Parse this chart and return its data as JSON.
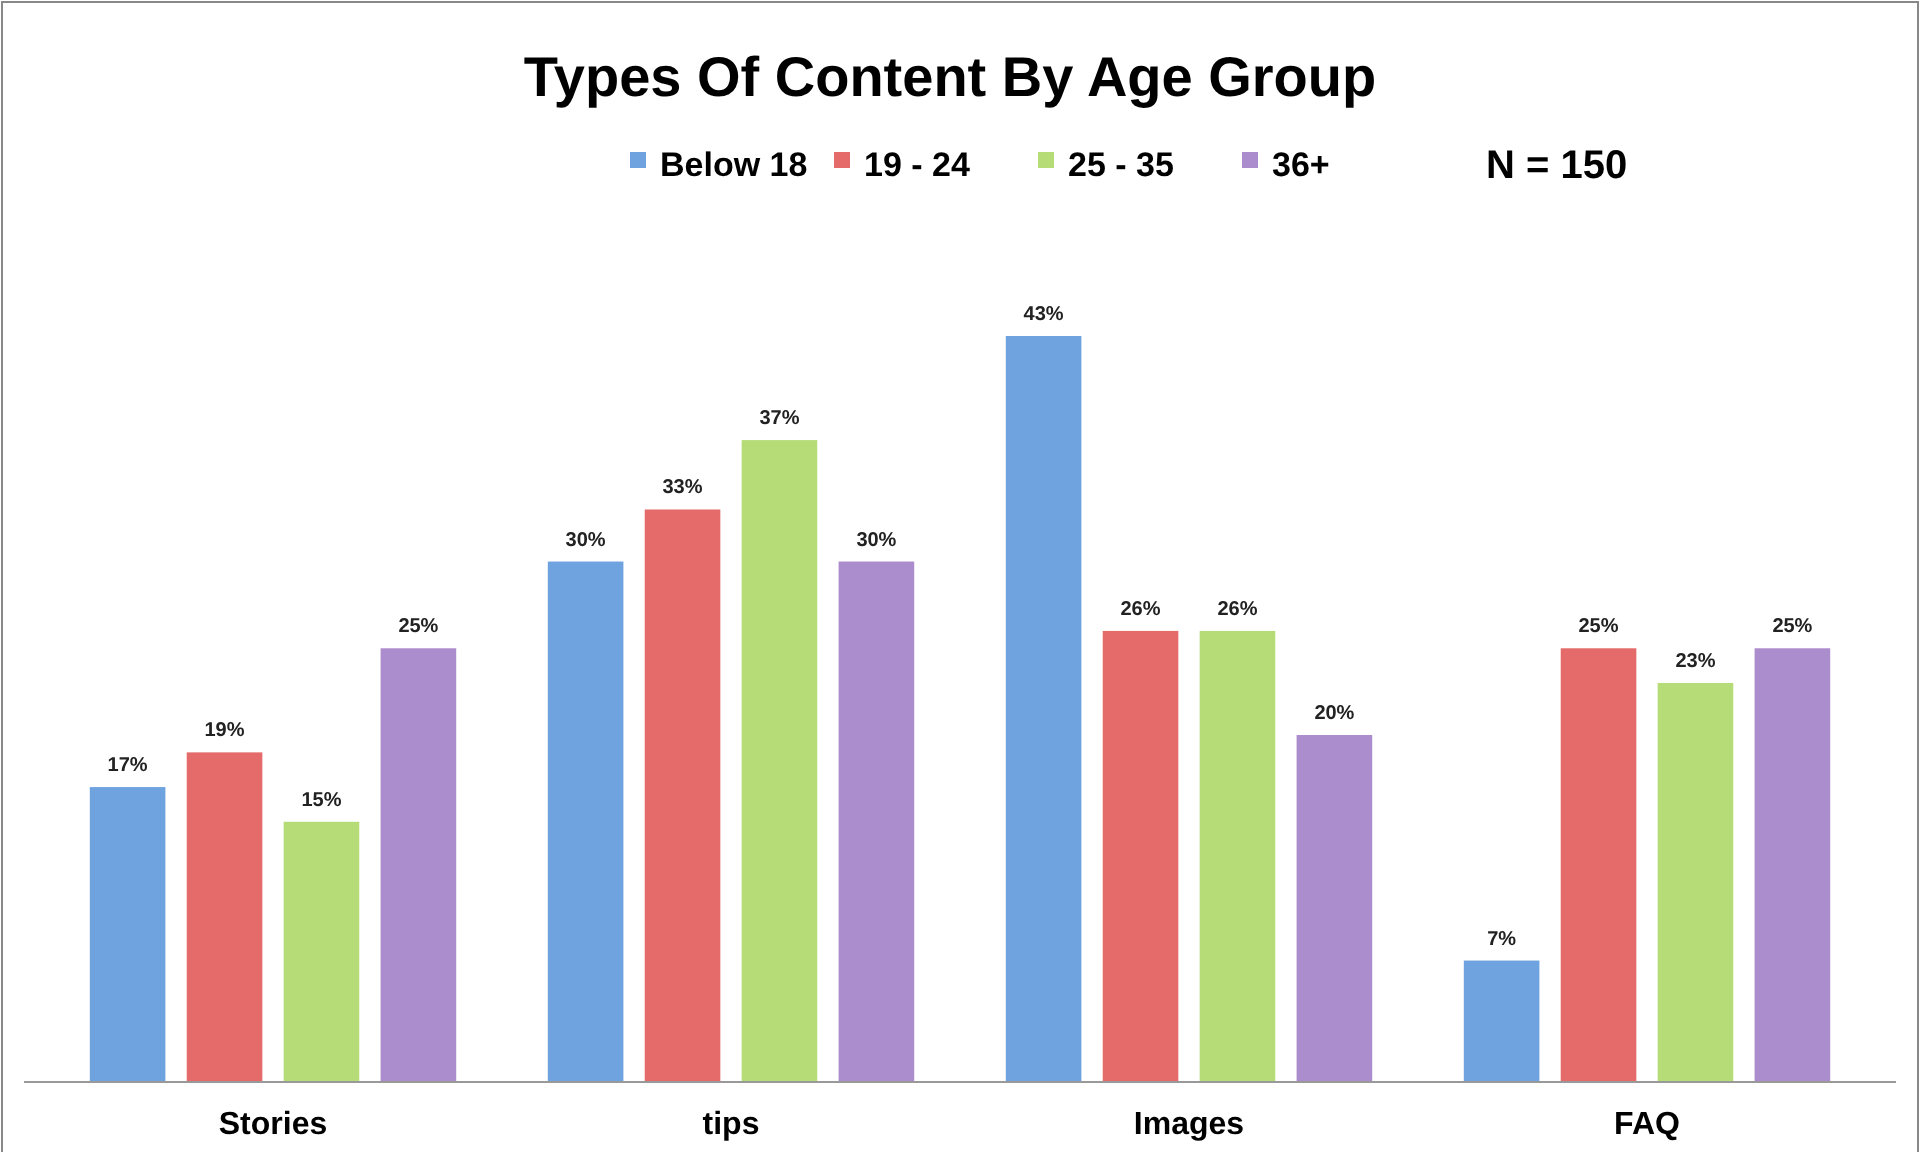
{
  "chart_data": {
    "type": "bar",
    "title": "Types Of Content By Age Group",
    "categories": [
      "Stories",
      "tips",
      "Images",
      "FAQ"
    ],
    "series": [
      {
        "name": "Below 18",
        "color": "#6fa3e0",
        "values": [
          17,
          30,
          43,
          7
        ],
        "value_labels": [
          "17%",
          "30%",
          "43%",
          "7%"
        ]
      },
      {
        "name": "19 - 24",
        "color": "#e56b6b",
        "values": [
          19,
          33,
          26,
          25
        ],
        "value_labels": [
          "19%",
          "33%",
          "26%",
          "25%"
        ]
      },
      {
        "name": "25 - 35",
        "color": "#b6dc78",
        "values": [
          15,
          37,
          26,
          23
        ],
        "value_labels": [
          "15%",
          "37%",
          "26%",
          "23%"
        ]
      },
      {
        "name": "36+",
        "color": "#ab8ccc",
        "values": [
          25,
          30,
          20,
          25
        ],
        "value_labels": [
          "25%",
          "30%",
          "20%",
          "25%"
        ]
      }
    ],
    "legend": "top",
    "annotations": [
      "N = 150"
    ]
  }
}
